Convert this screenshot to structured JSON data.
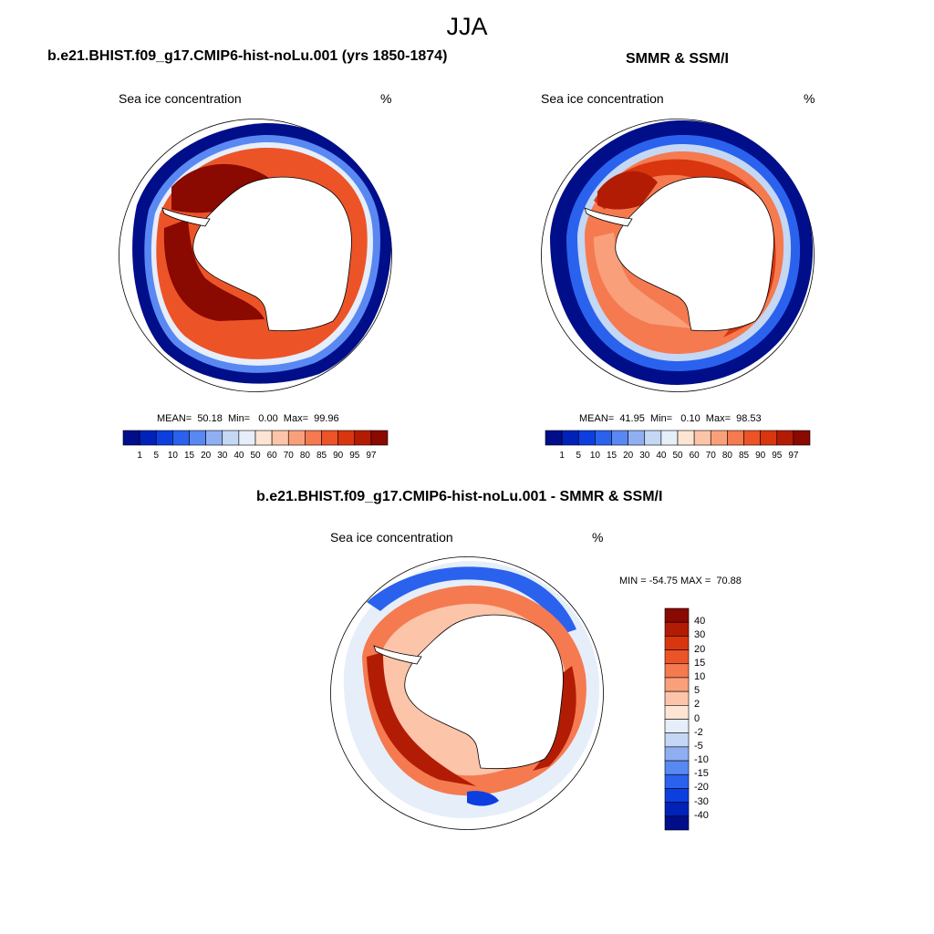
{
  "title": "JJA",
  "panels": {
    "model": {
      "title": "b.e21.BHIST.f09_g17.CMIP6-hist-noLu.001 (yrs 1850-1874)",
      "left_label": "Sea ice concentration",
      "right_label": "%",
      "stats": "MEAN=  50.18  Min=   0.00  Max=  99.96"
    },
    "obs": {
      "title": "SMMR & SSM/I",
      "left_label": "Sea ice concentration",
      "right_label": "%",
      "stats": "MEAN=  41.95  Min=   0.10  Max=  98.53"
    },
    "diff": {
      "title": "b.e21.BHIST.f09_g17.CMIP6-hist-noLu.001 - SMMR & SSM/I",
      "left_label": "Sea ice concentration",
      "right_label": "%",
      "minmax": "MIN = -54.75 MAX =  70.88"
    }
  },
  "colorbar_abs": {
    "labels": [
      "1",
      "5",
      "10",
      "15",
      "20",
      "30",
      "40",
      "50",
      "60",
      "70",
      "80",
      "85",
      "90",
      "95",
      "97"
    ],
    "colors": [
      "#000e8a",
      "#0022b8",
      "#0d3fe0",
      "#2a62ee",
      "#5a88f2",
      "#90aff2",
      "#c4d7f4",
      "#e6eefa",
      "#fde4d3",
      "#fcc4a8",
      "#f9a07b",
      "#f57a50",
      "#ec5428",
      "#d9360f",
      "#b31c04",
      "#8a0900"
    ]
  },
  "colorbar_diff": {
    "labels": [
      "40",
      "30",
      "20",
      "15",
      "10",
      "5",
      "2",
      "0",
      "-2",
      "-5",
      "-10",
      "-15",
      "-20",
      "-30",
      "-40"
    ],
    "colors": [
      "#8a0900",
      "#b31c04",
      "#d9360f",
      "#ec5428",
      "#f57a50",
      "#f9a07b",
      "#fcc4a8",
      "#fde4d3",
      "#e6eefa",
      "#c4d7f4",
      "#90aff2",
      "#5a88f2",
      "#2a62ee",
      "#0d3fe0",
      "#0022b8",
      "#000e8a"
    ]
  }
}
